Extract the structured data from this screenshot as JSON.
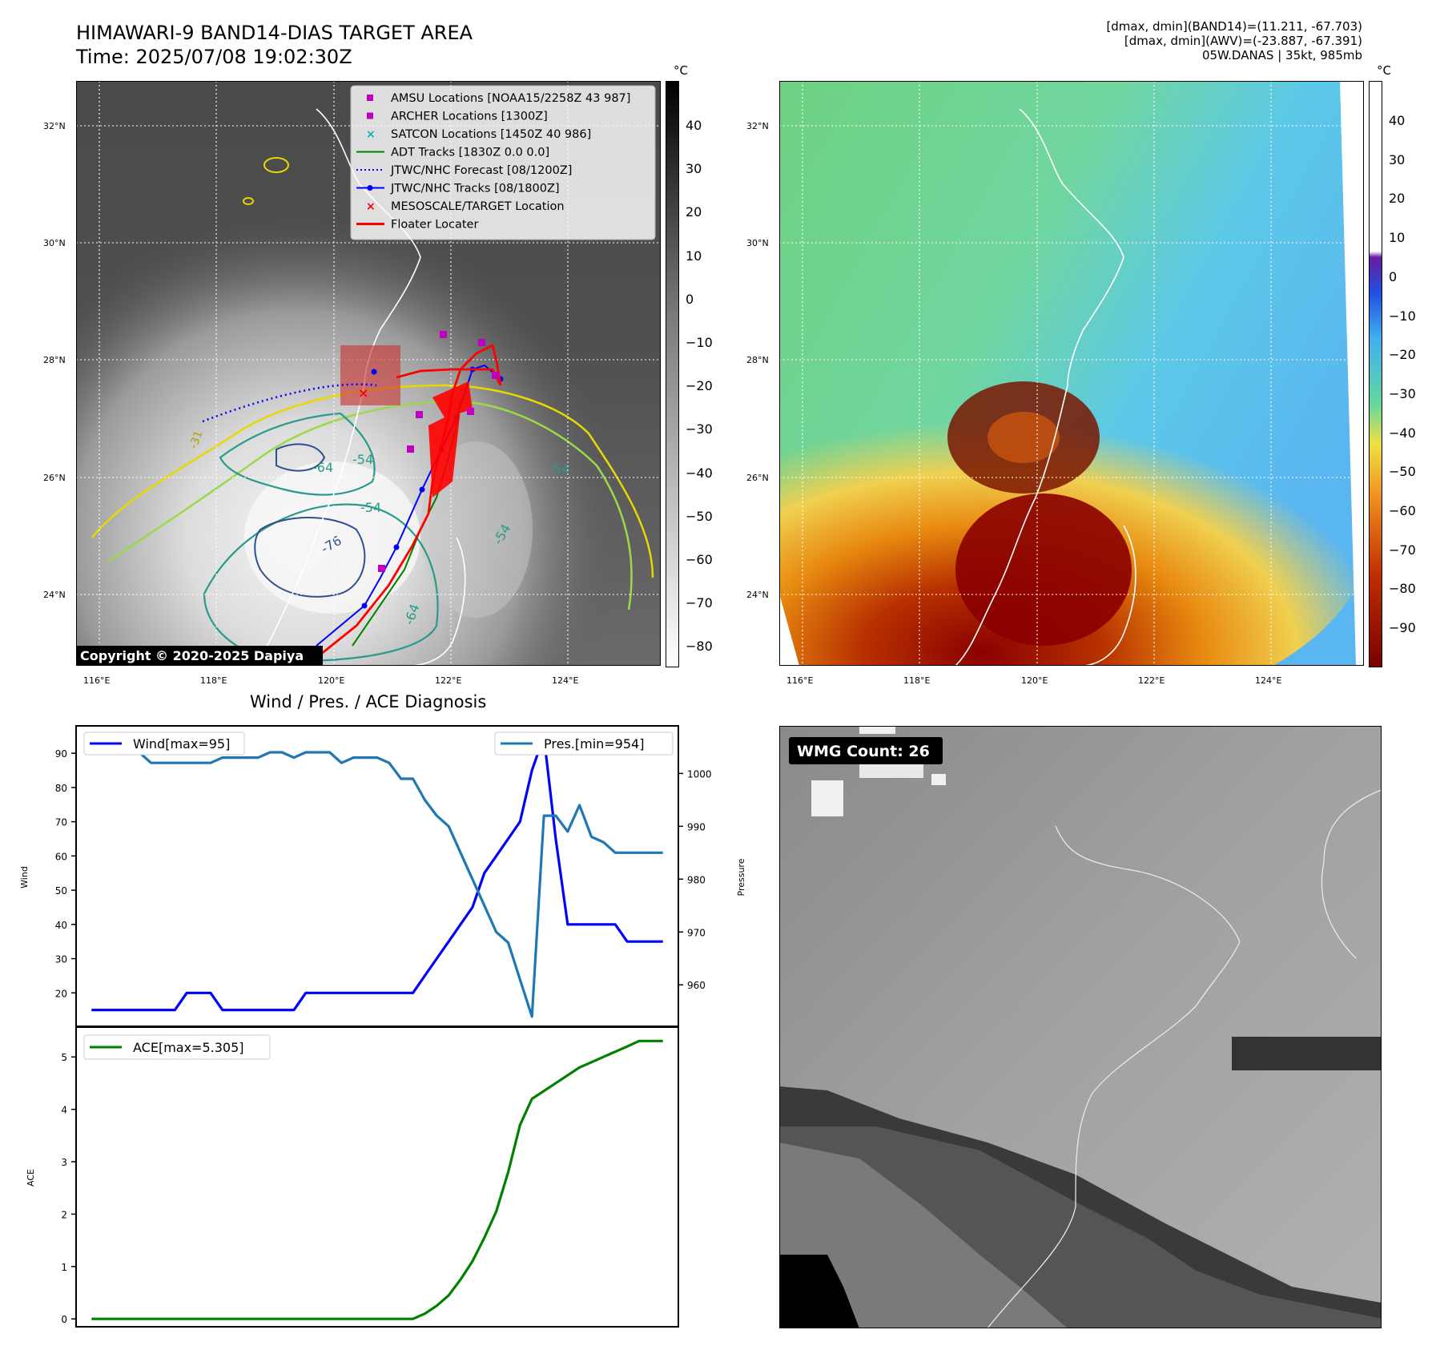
{
  "header": {
    "title_line1": "HIMAWARI-9 BAND14-DIAS TARGET AREA",
    "title_line2": "Time: 2025/07/08 19:02:30Z",
    "stats_line1": "[dmax, dmin](BAND14)=(11.211, -67.703)",
    "stats_line2": "[dmax, dmin](AWV)=(-23.887, -67.391)",
    "stats_line3": "05W.DANAS | 35kt, 985mb"
  },
  "map_panel": {
    "lat_labels": [
      "32°N",
      "30°N",
      "28°N",
      "26°N",
      "24°N"
    ],
    "lon_labels": [
      "116°E",
      "118°E",
      "120°E",
      "122°E",
      "124°E"
    ],
    "copyright": "Copyright © 2020-2025 Dapiya",
    "contour_labels": [
      "-76",
      "-64",
      "-54",
      "-54",
      "-64",
      "-31",
      "-54",
      "-54"
    ],
    "legend": [
      {
        "label": "AMSU Locations [NOAA15/2258Z 43 987]",
        "marker": "square",
        "color": "#c000c0"
      },
      {
        "label": "ARCHER Locations [1300Z]",
        "marker": "square",
        "color": "#c000c0"
      },
      {
        "label": "SATCON Locations [1450Z 40 986]",
        "marker": "x",
        "color": "#00b4b4"
      },
      {
        "label": "ADT Tracks [1830Z 0.0 0.0]",
        "marker": "line",
        "color": "#008000"
      },
      {
        "label": "JTWC/NHC Forecast [08/1200Z]",
        "marker": "dotted",
        "color": "#0000ff"
      },
      {
        "label": "JTWC/NHC Tracks [08/1800Z]",
        "marker": "line-dot",
        "color": "#0000ff"
      },
      {
        "label": "MESOSCALE/TARGET Location",
        "marker": "x",
        "color": "#ff0000"
      },
      {
        "label": "Floater Locater",
        "marker": "line",
        "color": "#ff0000"
      }
    ],
    "colorbar_unit": "°C",
    "colorbar_ticks": [
      "40",
      "30",
      "20",
      "10",
      "0",
      "−10",
      "−20",
      "−30",
      "−40",
      "−50",
      "−60",
      "−70",
      "−80"
    ]
  },
  "awv_panel": {
    "lat_labels": [
      "32°N",
      "30°N",
      "28°N",
      "26°N",
      "24°N"
    ],
    "lon_labels": [
      "116°E",
      "118°E",
      "120°E",
      "122°E",
      "124°E"
    ],
    "colorbar_unit": "°C",
    "colorbar_ticks": [
      "40",
      "30",
      "20",
      "10",
      "0",
      "−10",
      "−20",
      "−30",
      "−40",
      "−50",
      "−60",
      "−70",
      "−80",
      "−90"
    ]
  },
  "wmg_panel": {
    "badge": "WMG Count: 26"
  },
  "chart_data": [
    {
      "type": "line",
      "title": "Wind / Pres. / ACE Diagnosis",
      "ylabel": "Wind",
      "ylabel_right": "Pressure",
      "ylim": [
        10,
        98
      ],
      "ylim_right": [
        952,
        1009
      ],
      "yticks": [
        20,
        30,
        40,
        50,
        60,
        70,
        80,
        90
      ],
      "yticks_right": [
        960,
        970,
        980,
        990,
        1000
      ],
      "x": [
        0,
        1,
        2,
        3,
        4,
        5,
        6,
        7,
        8,
        9,
        10,
        11,
        12,
        13,
        14,
        15,
        16,
        17,
        18,
        19,
        20,
        21,
        22,
        23,
        24,
        25,
        26,
        27,
        28,
        29,
        30,
        31,
        32,
        33,
        34,
        35,
        36,
        37,
        38,
        39,
        40,
        41,
        42,
        43,
        44,
        45,
        46,
        47,
        48
      ],
      "series": [
        {
          "name": "Wind[max=95]",
          "color": "#0000ff",
          "axis": "left",
          "values": [
            15,
            15,
            15,
            15,
            15,
            15,
            15,
            15,
            20,
            20,
            20,
            15,
            15,
            15,
            15,
            15,
            15,
            15,
            20,
            20,
            20,
            20,
            20,
            20,
            20,
            20,
            20,
            20,
            25,
            30,
            35,
            40,
            45,
            55,
            60,
            65,
            70,
            85,
            95,
            65,
            40,
            40,
            40,
            40,
            40,
            35,
            35,
            35,
            35
          ]
        },
        {
          "name": "Pres.[min=954]",
          "color": "#1f77b4",
          "axis": "right",
          "values": [
            1004,
            1004,
            1004,
            1004,
            1004,
            1002,
            1002,
            1002,
            1002,
            1002,
            1002,
            1003,
            1003,
            1003,
            1003,
            1004,
            1004,
            1003,
            1004,
            1004,
            1004,
            1002,
            1003,
            1003,
            1003,
            1002,
            999,
            999,
            995,
            992,
            990,
            985,
            980,
            975,
            970,
            968,
            961,
            954,
            992,
            992,
            989,
            994,
            988,
            987,
            985,
            985,
            985,
            985,
            985
          ]
        }
      ]
    },
    {
      "type": "line",
      "ylabel": "ACE",
      "ylim": [
        -0.15,
        5.6
      ],
      "yticks": [
        0,
        1,
        2,
        3,
        4,
        5
      ],
      "x": [
        0,
        1,
        2,
        3,
        4,
        5,
        6,
        7,
        8,
        9,
        10,
        11,
        12,
        13,
        14,
        15,
        16,
        17,
        18,
        19,
        20,
        21,
        22,
        23,
        24,
        25,
        26,
        27,
        28,
        29,
        30,
        31,
        32,
        33,
        34,
        35,
        36,
        37,
        38,
        39,
        40,
        41,
        42,
        43,
        44,
        45,
        46,
        47,
        48
      ],
      "series": [
        {
          "name": "ACE[max=5.305]",
          "color": "#008000",
          "values": [
            0,
            0,
            0,
            0,
            0,
            0,
            0,
            0,
            0,
            0,
            0,
            0,
            0,
            0,
            0,
            0,
            0,
            0,
            0,
            0,
            0,
            0,
            0,
            0,
            0,
            0,
            0,
            0,
            0.1,
            0.25,
            0.45,
            0.75,
            1.1,
            1.55,
            2.05,
            2.8,
            3.7,
            4.2,
            4.35,
            4.5,
            4.65,
            4.8,
            4.9,
            5.0,
            5.1,
            5.2,
            5.305,
            5.305,
            5.305
          ]
        }
      ]
    }
  ]
}
